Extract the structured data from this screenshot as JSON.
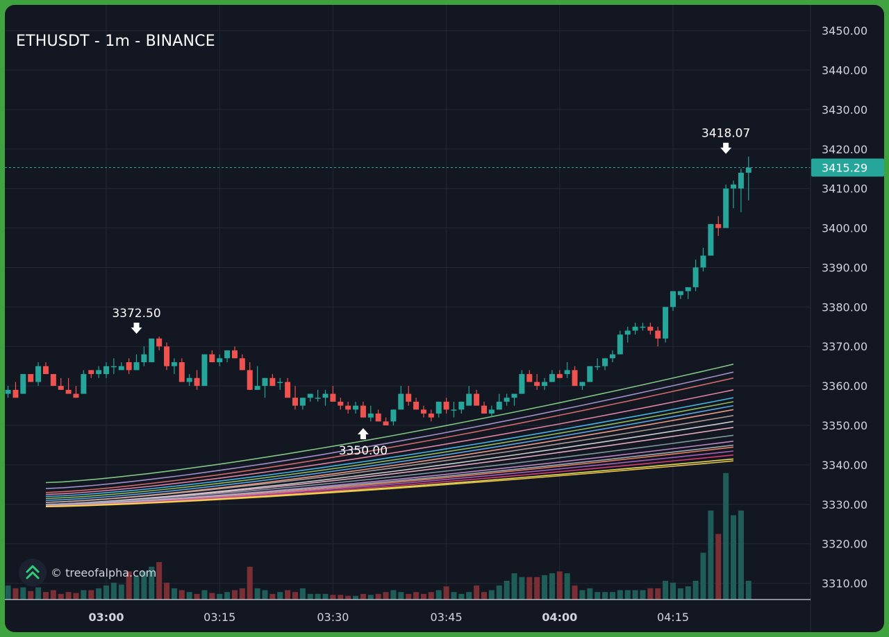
{
  "chart_title": "ETHUSDT - 1m - BINANCE",
  "watermark": "© treeofalpha.com",
  "colors": {
    "background": "#131722",
    "frame": "#3fa33f",
    "up": "#26a69a",
    "down": "#ef5350",
    "grid": "#232937",
    "axis_text": "#d1d4dc",
    "price_line": "#26a69a"
  },
  "icons": [
    "tree-of-alpha-logo-icon",
    "arrow-down-icon",
    "arrow-up-icon"
  ],
  "chart_data": {
    "type": "candlestick",
    "symbol": "ETHUSDT",
    "interval": "1m",
    "exchange": "BINANCE",
    "ylim": [
      3308,
      3453
    ],
    "y_ticks": [
      "3450.00",
      "3440.00",
      "3430.00",
      "3420.00",
      "3410.00",
      "3400.00",
      "3390.00",
      "3380.00",
      "3370.00",
      "3360.00",
      "3350.00",
      "3340.00",
      "3330.00",
      "3320.00",
      "3310.00"
    ],
    "x_ticks": [
      {
        "label": "03:00",
        "minute": 0,
        "bold": true
      },
      {
        "label": "03:15",
        "minute": 15,
        "bold": false
      },
      {
        "label": "03:30",
        "minute": 30,
        "bold": false
      },
      {
        "label": "03:45",
        "minute": 45,
        "bold": false
      },
      {
        "label": "04:00",
        "minute": 60,
        "bold": true
      },
      {
        "label": "04:15",
        "minute": 75,
        "bold": false
      }
    ],
    "last_price": "3415.29",
    "annotations": [
      {
        "label": "3372.50",
        "price": 3372.5,
        "minute": 4,
        "direction": "down"
      },
      {
        "label": "3350.00",
        "price": 3350.0,
        "minute": 34,
        "direction": "up"
      },
      {
        "label": "3418.07",
        "price": 3418.07,
        "minute": 82,
        "direction": "down"
      }
    ],
    "candles": [
      [
        3358,
        3360,
        3357,
        3359,
        15
      ],
      [
        3359,
        3361,
        3357,
        3357,
        12
      ],
      [
        3358,
        3363,
        3358,
        3363,
        13
      ],
      [
        3363,
        3363,
        3361,
        3361,
        9
      ],
      [
        3361,
        3366,
        3360,
        3365,
        13
      ],
      [
        3365,
        3366,
        3363,
        3363,
        8
      ],
      [
        3363,
        3363,
        3360,
        3360,
        10
      ],
      [
        3360,
        3362,
        3359,
        3359,
        6
      ],
      [
        3359,
        3362,
        3358,
        3358,
        8
      ],
      [
        3358,
        3360,
        3357,
        3357,
        7
      ],
      [
        3358,
        3364,
        3358,
        3363,
        10
      ],
      [
        3364,
        3364,
        3362,
        3363,
        10
      ],
      [
        3363,
        3365,
        3362,
        3364,
        12
      ],
      [
        3363,
        3366,
        3362,
        3365,
        15
      ],
      [
        3365,
        3367,
        3363,
        3365,
        18
      ],
      [
        3364,
        3366,
        3364,
        3365,
        16
      ],
      [
        3366,
        3367,
        3363,
        3364,
        30
      ],
      [
        3364,
        3368,
        3364,
        3366,
        25
      ],
      [
        3366,
        3370,
        3365,
        3368,
        30
      ],
      [
        3366,
        3372,
        3366,
        3372,
        35
      ],
      [
        3372,
        3372.5,
        3369,
        3370,
        40
      ],
      [
        3370,
        3371,
        3364,
        3365,
        18
      ],
      [
        3365,
        3367,
        3363,
        3366,
        12
      ],
      [
        3366,
        3367,
        3361,
        3361,
        10
      ],
      [
        3361,
        3363,
        3360,
        3362,
        8
      ],
      [
        3362,
        3364,
        3359,
        3360,
        6
      ],
      [
        3360,
        3368,
        3360,
        3368,
        10
      ],
      [
        3368,
        3369,
        3366,
        3366,
        7
      ],
      [
        3366,
        3368,
        3365,
        3367,
        6
      ],
      [
        3367,
        3369,
        3366,
        3369,
        8
      ],
      [
        3369,
        3370,
        3367,
        3367,
        10
      ],
      [
        3367,
        3368,
        3364,
        3364,
        12
      ],
      [
        3364,
        3366,
        3359,
        3359,
        35
      ],
      [
        3359,
        3365,
        3359,
        3360,
        12
      ],
      [
        3360,
        3362,
        3357,
        3362,
        10
      ],
      [
        3362,
        3363,
        3360,
        3360,
        6
      ],
      [
        3361,
        3362,
        3359,
        3361,
        8
      ],
      [
        3361,
        3362,
        3357,
        3357,
        10
      ],
      [
        3357,
        3360,
        3354,
        3355,
        8
      ],
      [
        3355,
        3357,
        3354,
        3357,
        12
      ],
      [
        3357,
        3358,
        3356,
        3358,
        6
      ],
      [
        3357,
        3359,
        3356,
        3357,
        6
      ],
      [
        3357,
        3359,
        3355,
        3358,
        6
      ],
      [
        3358,
        3360,
        3356,
        3356,
        5
      ],
      [
        3356,
        3357,
        3354,
        3355,
        5
      ],
      [
        3355,
        3356,
        3353,
        3354,
        4
      ],
      [
        3354,
        3356,
        3353,
        3355,
        4
      ],
      [
        3355,
        3356,
        3352,
        3352,
        6
      ],
      [
        3352,
        3355,
        3351,
        3353,
        5
      ],
      [
        3353,
        3354,
        3351,
        3351,
        6
      ],
      [
        3351,
        3352,
        3350,
        3350,
        8
      ],
      [
        3351,
        3354,
        3350,
        3354,
        10
      ],
      [
        3354,
        3360,
        3354,
        3358,
        8
      ],
      [
        3358,
        3360,
        3355,
        3356,
        6
      ],
      [
        3356,
        3357,
        3354,
        3354,
        8
      ],
      [
        3354,
        3355,
        3352,
        3353,
        6
      ],
      [
        3353,
        3354,
        3351,
        3352,
        8
      ],
      [
        3353,
        3356,
        3352,
        3356,
        10
      ],
      [
        3356,
        3357,
        3353,
        3354,
        14
      ],
      [
        3354,
        3356,
        3352,
        3354,
        8
      ],
      [
        3354,
        3356,
        3353,
        3356,
        6
      ],
      [
        3355,
        3360,
        3355,
        3358,
        8
      ],
      [
        3358,
        3359,
        3355,
        3355,
        15
      ],
      [
        3355,
        3356,
        3353,
        3353,
        8
      ],
      [
        3353,
        3355,
        3352,
        3354,
        10
      ],
      [
        3354,
        3358,
        3354,
        3356,
        15
      ],
      [
        3356,
        3358,
        3355,
        3357,
        20
      ],
      [
        3357,
        3358,
        3355,
        3358,
        28
      ],
      [
        3358,
        3364,
        3358,
        3363,
        24
      ],
      [
        3363,
        3364,
        3361,
        3361,
        24
      ],
      [
        3361,
        3363,
        3359,
        3360,
        24
      ],
      [
        3360,
        3362,
        3359,
        3361,
        26
      ],
      [
        3361,
        3364,
        3361,
        3363,
        28
      ],
      [
        3363,
        3364,
        3362,
        3362,
        30
      ],
      [
        3363,
        3366,
        3362,
        3364,
        28
      ],
      [
        3364,
        3365,
        3360,
        3360,
        15
      ],
      [
        3360,
        3361,
        3359,
        3361,
        10
      ],
      [
        3361,
        3365,
        3361,
        3365,
        12
      ],
      [
        3365,
        3367,
        3364,
        3365,
        8
      ],
      [
        3365,
        3367,
        3364,
        3367,
        8
      ],
      [
        3367,
        3369,
        3366,
        3368,
        8
      ],
      [
        3368,
        3374,
        3368,
        3373,
        10
      ],
      [
        3373,
        3375,
        3371,
        3374,
        10
      ],
      [
        3374,
        3376,
        3373,
        3375,
        10
      ],
      [
        3375,
        3376,
        3374,
        3375,
        10
      ],
      [
        3375,
        3376,
        3373,
        3374,
        12
      ],
      [
        3374,
        3375,
        3370,
        3372,
        12
      ],
      [
        3372,
        3380,
        3371,
        3380,
        20
      ],
      [
        3380,
        3384,
        3379,
        3384,
        18
      ],
      [
        3383,
        3384,
        3382,
        3384,
        12
      ],
      [
        3384,
        3385,
        3382,
        3385,
        14
      ],
      [
        3385,
        3392,
        3384,
        3390,
        20
      ],
      [
        3390,
        3395,
        3389,
        3393,
        50
      ],
      [
        3393,
        3401,
        3393,
        3401,
        95
      ],
      [
        3401,
        3403,
        3398,
        3400,
        70
      ],
      [
        3400,
        3411,
        3400,
        3410,
        135
      ],
      [
        3410,
        3412,
        3405,
        3411,
        90
      ],
      [
        3410,
        3415,
        3404,
        3414,
        95
      ],
      [
        3414,
        3418.07,
        3407,
        3415.29,
        20
      ]
    ],
    "ema_ribbon": {
      "colors": [
        "#8fd98f",
        "#b39ddb",
        "#e57373",
        "#f48fb1",
        "#4fc3f7",
        "#9ccc65",
        "#64b5f6",
        "#ffab91",
        "#bcaaa4",
        "#e0e0e0",
        "#f8bbd0",
        "#90a4ae",
        "#ce93d8",
        "#b0bec5",
        "#ff8a65",
        "#ba68c8",
        "#ec407a",
        "#ffee58",
        "#ffd54f"
      ],
      "start_values": [
        3335.5,
        3334.0,
        3333.0,
        3332.5,
        3332.0,
        3331.5,
        3331.0,
        3330.5,
        3330.5,
        3330.0,
        3330.0,
        3330.0,
        3329.8,
        3329.8,
        3329.6,
        3329.6,
        3329.5,
        3329.5,
        3329.4
      ],
      "end_values": [
        3365.5,
        3363.5,
        3362.0,
        3359.0,
        3357.0,
        3356.0,
        3355.0,
        3354.0,
        3352.5,
        3351.0,
        3349.5,
        3347.5,
        3346.0,
        3345.0,
        3344.5,
        3343.5,
        3342.5,
        3341.5,
        3341.0
      ],
      "start_minute": -8,
      "end_minute": 83
    }
  }
}
